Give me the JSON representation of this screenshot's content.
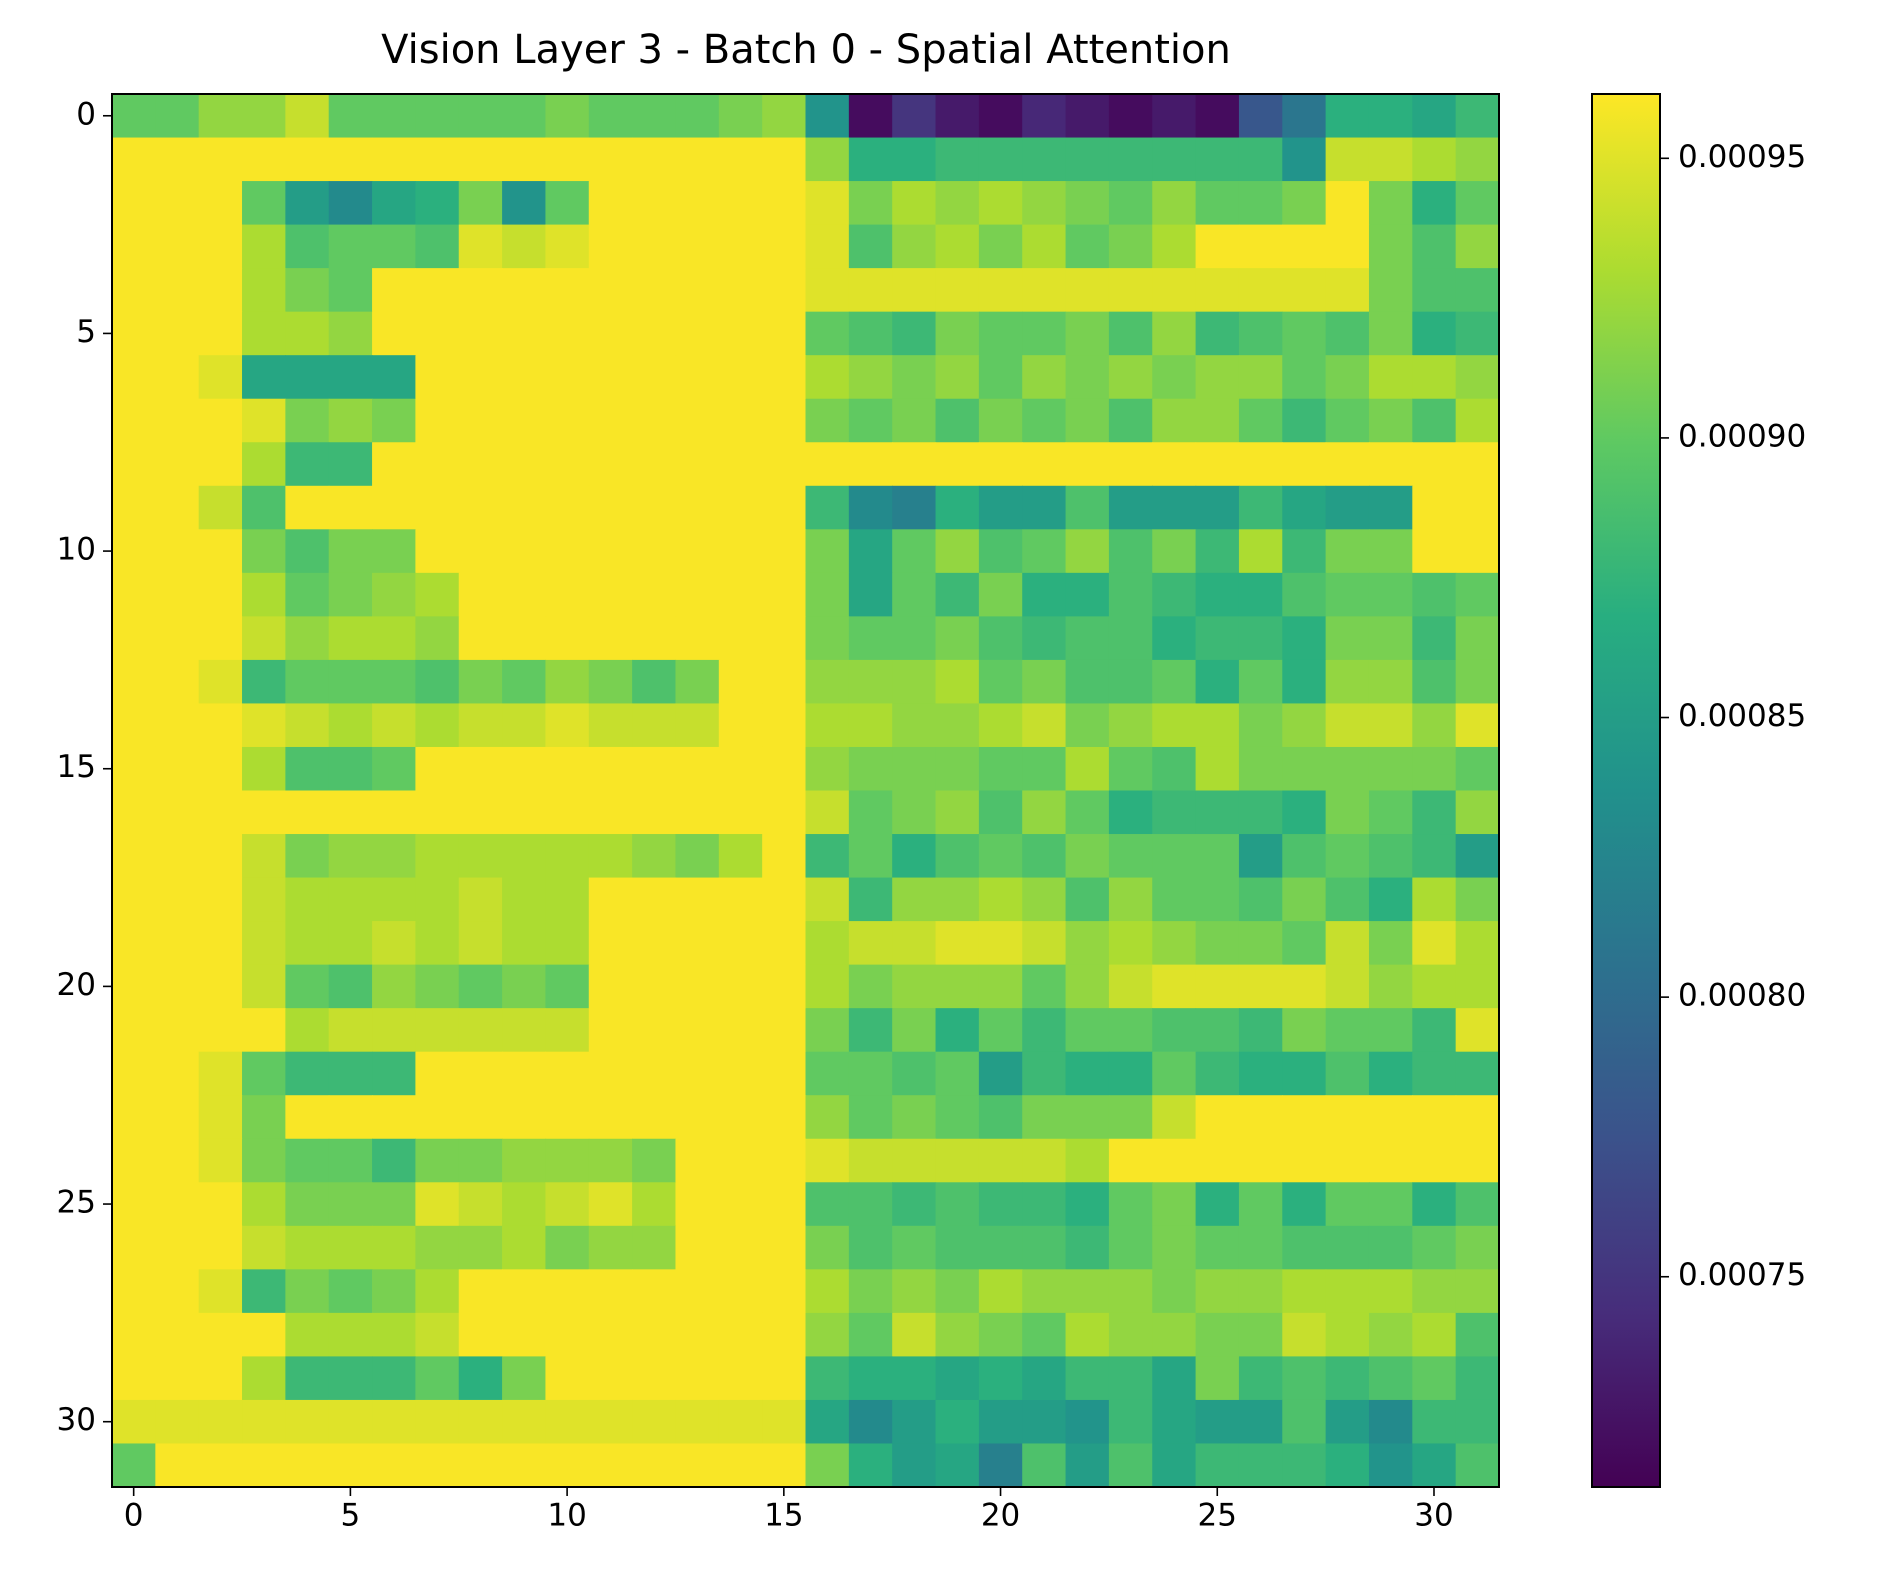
{
  "chart_data": {
    "type": "heatmap",
    "title": "Vision Layer 3 - Batch 0 - Spatial Attention",
    "colormap": "viridis",
    "xlim": [
      -0.5,
      31.5
    ],
    "xticks": [
      0,
      5,
      10,
      15,
      20,
      25,
      30
    ],
    "ylim": [
      31.5,
      -0.5
    ],
    "yticks": [
      0,
      5,
      10,
      15,
      20,
      25,
      30
    ],
    "clim": [
      0.0007124,
      0.0009615
    ],
    "cticks": [
      0.00075,
      {
        "value": 0.0008,
        "label": "0.00080"
      },
      0.00085,
      {
        "value": 0.0009,
        "label": "0.00090"
      },
      0.00095
    ],
    "z": [
      [
        0.0009,
        0.0009,
        0.00092,
        0.00092,
        0.00094,
        0.0009,
        0.0009,
        0.0009,
        0.0009,
        0.0009,
        0.00091,
        0.0009,
        0.0009,
        0.0009,
        0.00091,
        0.00092,
        0.00084,
        0.00072,
        0.00075,
        0.00073,
        0.00072,
        0.00074,
        0.00073,
        0.00072,
        0.00073,
        0.00072,
        0.00078,
        0.00081,
        0.00087,
        0.00087,
        0.00086,
        0.00088
      ],
      [
        0.00096,
        0.00096,
        0.00096,
        0.00096,
        0.00096,
        0.00096,
        0.00096,
        0.00096,
        0.00096,
        0.00096,
        0.00096,
        0.00096,
        0.00096,
        0.00096,
        0.00096,
        0.00096,
        0.00092,
        0.00087,
        0.00087,
        0.00088,
        0.00088,
        0.00088,
        0.00088,
        0.00088,
        0.00088,
        0.00088,
        0.00088,
        0.00084,
        0.00094,
        0.00094,
        0.00093,
        0.00092
      ],
      [
        0.00096,
        0.00096,
        0.00096,
        0.0009,
        0.00085,
        0.00083,
        0.00086,
        0.00087,
        0.00091,
        0.00084,
        0.0009,
        0.00096,
        0.00096,
        0.00096,
        0.00096,
        0.00096,
        0.00095,
        0.00091,
        0.00093,
        0.00092,
        0.00093,
        0.00092,
        0.00091,
        0.0009,
        0.00092,
        0.0009,
        0.0009,
        0.00091,
        0.00096,
        0.00091,
        0.00087,
        0.0009
      ],
      [
        0.00096,
        0.00096,
        0.00096,
        0.00093,
        0.00089,
        0.0009,
        0.0009,
        0.00089,
        0.00095,
        0.00094,
        0.00095,
        0.00096,
        0.00096,
        0.00096,
        0.00096,
        0.00096,
        0.00095,
        0.00089,
        0.00092,
        0.00093,
        0.00091,
        0.00093,
        0.0009,
        0.00091,
        0.00093,
        0.00096,
        0.00096,
        0.00096,
        0.00096,
        0.00091,
        0.00089,
        0.00092
      ],
      [
        0.00096,
        0.00096,
        0.00096,
        0.00093,
        0.00091,
        0.0009,
        0.00096,
        0.00096,
        0.00096,
        0.00096,
        0.00096,
        0.00096,
        0.00096,
        0.00096,
        0.00096,
        0.00096,
        0.00095,
        0.00095,
        0.00095,
        0.00095,
        0.00095,
        0.00095,
        0.00095,
        0.00095,
        0.00095,
        0.00095,
        0.00095,
        0.00095,
        0.00095,
        0.00091,
        0.00089,
        0.00089
      ],
      [
        0.00096,
        0.00096,
        0.00096,
        0.00093,
        0.00093,
        0.00092,
        0.00096,
        0.00096,
        0.00096,
        0.00096,
        0.00096,
        0.00096,
        0.00096,
        0.00096,
        0.00096,
        0.00096,
        0.0009,
        0.00089,
        0.00088,
        0.00091,
        0.0009,
        0.0009,
        0.00091,
        0.00089,
        0.00092,
        0.00088,
        0.00089,
        0.0009,
        0.00089,
        0.00091,
        0.00087,
        0.00088
      ],
      [
        0.00096,
        0.00096,
        0.00095,
        0.00086,
        0.00086,
        0.00086,
        0.00086,
        0.00096,
        0.00096,
        0.00096,
        0.00096,
        0.00096,
        0.00096,
        0.00096,
        0.00096,
        0.00096,
        0.00093,
        0.00092,
        0.00091,
        0.00092,
        0.0009,
        0.00092,
        0.00091,
        0.00092,
        0.00091,
        0.00092,
        0.00092,
        0.0009,
        0.00091,
        0.00093,
        0.00093,
        0.00092
      ],
      [
        0.00096,
        0.00096,
        0.00096,
        0.00095,
        0.00091,
        0.00092,
        0.00091,
        0.00096,
        0.00096,
        0.00096,
        0.00096,
        0.00096,
        0.00096,
        0.00096,
        0.00096,
        0.00096,
        0.00091,
        0.0009,
        0.00091,
        0.00089,
        0.00091,
        0.0009,
        0.00091,
        0.00089,
        0.00092,
        0.00092,
        0.0009,
        0.00088,
        0.0009,
        0.00091,
        0.00089,
        0.00093
      ],
      [
        0.00096,
        0.00096,
        0.00096,
        0.00093,
        0.00088,
        0.00088,
        0.00096,
        0.00096,
        0.00096,
        0.00096,
        0.00096,
        0.00096,
        0.00096,
        0.00096,
        0.00096,
        0.00096,
        0.00096,
        0.00096,
        0.00096,
        0.00096,
        0.00096,
        0.00096,
        0.00096,
        0.00096,
        0.00096,
        0.00096,
        0.00096,
        0.00096,
        0.00096,
        0.00096,
        0.00096,
        0.00096
      ],
      [
        0.00096,
        0.00096,
        0.00094,
        0.00089,
        0.00096,
        0.00096,
        0.00096,
        0.00096,
        0.00096,
        0.00096,
        0.00096,
        0.00096,
        0.00096,
        0.00096,
        0.00096,
        0.00096,
        0.00088,
        0.00083,
        0.00082,
        0.00087,
        0.00085,
        0.00085,
        0.00089,
        0.00085,
        0.00085,
        0.00085,
        0.00088,
        0.00086,
        0.00085,
        0.00085,
        0.00096,
        0.00096
      ],
      [
        0.00096,
        0.00096,
        0.00096,
        0.00091,
        0.00089,
        0.00091,
        0.00091,
        0.00096,
        0.00096,
        0.00096,
        0.00096,
        0.00096,
        0.00096,
        0.00096,
        0.00096,
        0.00096,
        0.00091,
        0.00086,
        0.0009,
        0.00092,
        0.00089,
        0.0009,
        0.00092,
        0.00089,
        0.00091,
        0.00088,
        0.00093,
        0.00088,
        0.00091,
        0.00091,
        0.00096,
        0.00096
      ],
      [
        0.00096,
        0.00096,
        0.00096,
        0.00093,
        0.0009,
        0.00091,
        0.00092,
        0.00093,
        0.00096,
        0.00096,
        0.00096,
        0.00096,
        0.00096,
        0.00096,
        0.00096,
        0.00096,
        0.00091,
        0.00086,
        0.0009,
        0.00088,
        0.00091,
        0.00087,
        0.00087,
        0.00089,
        0.00088,
        0.00087,
        0.00087,
        0.00089,
        0.0009,
        0.0009,
        0.00089,
        0.0009
      ],
      [
        0.00096,
        0.00096,
        0.00096,
        0.00094,
        0.00092,
        0.00093,
        0.00093,
        0.00092,
        0.00096,
        0.00096,
        0.00096,
        0.00096,
        0.00096,
        0.00096,
        0.00096,
        0.00096,
        0.00091,
        0.0009,
        0.0009,
        0.00091,
        0.00089,
        0.00088,
        0.00089,
        0.00089,
        0.00087,
        0.00088,
        0.00088,
        0.00087,
        0.00091,
        0.00091,
        0.00088,
        0.00091
      ],
      [
        0.00096,
        0.00096,
        0.00095,
        0.00088,
        0.0009,
        0.0009,
        0.0009,
        0.00089,
        0.00091,
        0.0009,
        0.00092,
        0.00091,
        0.00089,
        0.00091,
        0.00096,
        0.00096,
        0.00092,
        0.00092,
        0.00092,
        0.00093,
        0.0009,
        0.00091,
        0.00089,
        0.00089,
        0.0009,
        0.00087,
        0.0009,
        0.00087,
        0.00092,
        0.00092,
        0.00089,
        0.00091
      ],
      [
        0.00096,
        0.00096,
        0.00096,
        0.00095,
        0.00094,
        0.00093,
        0.00094,
        0.00093,
        0.00094,
        0.00094,
        0.00095,
        0.00094,
        0.00094,
        0.00094,
        0.00096,
        0.00096,
        0.00093,
        0.00093,
        0.00092,
        0.00092,
        0.00093,
        0.00094,
        0.00091,
        0.00092,
        0.00093,
        0.00093,
        0.00091,
        0.00092,
        0.00094,
        0.00094,
        0.00092,
        0.00095
      ],
      [
        0.00096,
        0.00096,
        0.00096,
        0.00093,
        0.00089,
        0.00089,
        0.0009,
        0.00096,
        0.00096,
        0.00096,
        0.00096,
        0.00096,
        0.00096,
        0.00096,
        0.00096,
        0.00096,
        0.00092,
        0.00091,
        0.00091,
        0.00091,
        0.0009,
        0.0009,
        0.00093,
        0.0009,
        0.00089,
        0.00093,
        0.00091,
        0.00091,
        0.00091,
        0.00091,
        0.00091,
        0.0009
      ],
      [
        0.00096,
        0.00096,
        0.00096,
        0.00096,
        0.00096,
        0.00096,
        0.00096,
        0.00096,
        0.00096,
        0.00096,
        0.00096,
        0.00096,
        0.00096,
        0.00096,
        0.00096,
        0.00096,
        0.00094,
        0.0009,
        0.00091,
        0.00092,
        0.00089,
        0.00092,
        0.0009,
        0.00087,
        0.00088,
        0.00088,
        0.00088,
        0.00087,
        0.00091,
        0.0009,
        0.00088,
        0.00092
      ],
      [
        0.00096,
        0.00096,
        0.00096,
        0.00094,
        0.00091,
        0.00092,
        0.00092,
        0.00093,
        0.00093,
        0.00093,
        0.00093,
        0.00093,
        0.00092,
        0.00091,
        0.00093,
        0.00096,
        0.00088,
        0.0009,
        0.00087,
        0.00089,
        0.0009,
        0.00089,
        0.00091,
        0.0009,
        0.0009,
        0.0009,
        0.00085,
        0.00089,
        0.0009,
        0.00089,
        0.00088,
        0.00085
      ],
      [
        0.00096,
        0.00096,
        0.00096,
        0.00094,
        0.00093,
        0.00093,
        0.00093,
        0.00093,
        0.00094,
        0.00093,
        0.00093,
        0.00096,
        0.00096,
        0.00096,
        0.00096,
        0.00096,
        0.00094,
        0.00088,
        0.00092,
        0.00092,
        0.00093,
        0.00092,
        0.00089,
        0.00092,
        0.0009,
        0.0009,
        0.00089,
        0.00091,
        0.00089,
        0.00087,
        0.00093,
        0.00091
      ],
      [
        0.00096,
        0.00096,
        0.00096,
        0.00094,
        0.00093,
        0.00093,
        0.00094,
        0.00093,
        0.00094,
        0.00093,
        0.00093,
        0.00096,
        0.00096,
        0.00096,
        0.00096,
        0.00096,
        0.00093,
        0.00094,
        0.00094,
        0.00095,
        0.00095,
        0.00094,
        0.00092,
        0.00093,
        0.00092,
        0.00091,
        0.00091,
        0.0009,
        0.00094,
        0.00091,
        0.00095,
        0.00093
      ],
      [
        0.00096,
        0.00096,
        0.00096,
        0.00094,
        0.0009,
        0.00089,
        0.00092,
        0.00091,
        0.0009,
        0.00091,
        0.0009,
        0.00096,
        0.00096,
        0.00096,
        0.00096,
        0.00096,
        0.00093,
        0.00091,
        0.00092,
        0.00092,
        0.00092,
        0.0009,
        0.00092,
        0.00094,
        0.00095,
        0.00095,
        0.00095,
        0.00095,
        0.00094,
        0.00092,
        0.00093,
        0.00093
      ],
      [
        0.00096,
        0.00096,
        0.00096,
        0.00096,
        0.00093,
        0.00094,
        0.00094,
        0.00094,
        0.00094,
        0.00094,
        0.00094,
        0.00096,
        0.00096,
        0.00096,
        0.00096,
        0.00096,
        0.00091,
        0.00088,
        0.00091,
        0.00087,
        0.0009,
        0.00088,
        0.0009,
        0.0009,
        0.00089,
        0.00089,
        0.00088,
        0.00091,
        0.0009,
        0.0009,
        0.00088,
        0.00095
      ],
      [
        0.00096,
        0.00096,
        0.00095,
        0.0009,
        0.00088,
        0.00088,
        0.00088,
        0.00096,
        0.00096,
        0.00096,
        0.00096,
        0.00096,
        0.00096,
        0.00096,
        0.00096,
        0.00096,
        0.0009,
        0.0009,
        0.00089,
        0.0009,
        0.00085,
        0.00088,
        0.00087,
        0.00087,
        0.0009,
        0.00088,
        0.00087,
        0.00087,
        0.00089,
        0.00087,
        0.00088,
        0.00088
      ],
      [
        0.00096,
        0.00096,
        0.00095,
        0.00091,
        0.00096,
        0.00096,
        0.00096,
        0.00096,
        0.00096,
        0.00096,
        0.00096,
        0.00096,
        0.00096,
        0.00096,
        0.00096,
        0.00096,
        0.00092,
        0.0009,
        0.00091,
        0.0009,
        0.00089,
        0.00091,
        0.00091,
        0.00091,
        0.00094,
        0.00096,
        0.00096,
        0.00096,
        0.00096,
        0.00096,
        0.00096,
        0.00096
      ],
      [
        0.00096,
        0.00096,
        0.00095,
        0.00091,
        0.0009,
        0.0009,
        0.00088,
        0.00091,
        0.00091,
        0.00092,
        0.00092,
        0.00092,
        0.00091,
        0.00096,
        0.00096,
        0.00096,
        0.00095,
        0.00094,
        0.00094,
        0.00094,
        0.00094,
        0.00094,
        0.00093,
        0.00096,
        0.00096,
        0.00096,
        0.00096,
        0.00096,
        0.00096,
        0.00096,
        0.00096,
        0.00096
      ],
      [
        0.00096,
        0.00096,
        0.00096,
        0.00093,
        0.00091,
        0.00091,
        0.00091,
        0.00095,
        0.00094,
        0.00093,
        0.00094,
        0.00095,
        0.00093,
        0.00096,
        0.00096,
        0.00096,
        0.00089,
        0.00089,
        0.00088,
        0.00089,
        0.00088,
        0.00088,
        0.00087,
        0.0009,
        0.00091,
        0.00087,
        0.0009,
        0.00087,
        0.0009,
        0.0009,
        0.00087,
        0.00089
      ],
      [
        0.00096,
        0.00096,
        0.00096,
        0.00094,
        0.00093,
        0.00093,
        0.00093,
        0.00092,
        0.00092,
        0.00093,
        0.00091,
        0.00092,
        0.00092,
        0.00096,
        0.00096,
        0.00096,
        0.00091,
        0.00089,
        0.0009,
        0.00089,
        0.00089,
        0.00089,
        0.00088,
        0.0009,
        0.00091,
        0.0009,
        0.0009,
        0.00089,
        0.00089,
        0.00089,
        0.0009,
        0.00091
      ],
      [
        0.00096,
        0.00096,
        0.00095,
        0.00088,
        0.00091,
        0.0009,
        0.00091,
        0.00093,
        0.00096,
        0.00096,
        0.00096,
        0.00096,
        0.00096,
        0.00096,
        0.00096,
        0.00096,
        0.00093,
        0.00091,
        0.00092,
        0.00091,
        0.00093,
        0.00092,
        0.00092,
        0.00092,
        0.00091,
        0.00092,
        0.00092,
        0.00093,
        0.00093,
        0.00093,
        0.00092,
        0.00092
      ],
      [
        0.00096,
        0.00096,
        0.00096,
        0.00096,
        0.00093,
        0.00093,
        0.00093,
        0.00094,
        0.00096,
        0.00096,
        0.00096,
        0.00096,
        0.00096,
        0.00096,
        0.00096,
        0.00096,
        0.00092,
        0.0009,
        0.00094,
        0.00092,
        0.00091,
        0.0009,
        0.00093,
        0.00092,
        0.00092,
        0.00091,
        0.00091,
        0.00094,
        0.00093,
        0.00092,
        0.00093,
        0.00089
      ],
      [
        0.00096,
        0.00096,
        0.00096,
        0.00093,
        0.00088,
        0.00088,
        0.00088,
        0.0009,
        0.00087,
        0.00091,
        0.00096,
        0.00096,
        0.00096,
        0.00096,
        0.00096,
        0.00096,
        0.00088,
        0.00087,
        0.00087,
        0.00086,
        0.00087,
        0.00086,
        0.00088,
        0.00088,
        0.00086,
        0.00091,
        0.00088,
        0.00089,
        0.00088,
        0.00089,
        0.0009,
        0.00088
      ],
      [
        0.00095,
        0.00095,
        0.00095,
        0.00095,
        0.00095,
        0.00095,
        0.00095,
        0.00095,
        0.00095,
        0.00095,
        0.00095,
        0.00095,
        0.00095,
        0.00095,
        0.00095,
        0.00095,
        0.00086,
        0.00083,
        0.00085,
        0.00087,
        0.00085,
        0.00085,
        0.00084,
        0.00088,
        0.00086,
        0.00085,
        0.00085,
        0.00089,
        0.00085,
        0.00083,
        0.00088,
        0.00088
      ],
      [
        0.0009,
        0.00096,
        0.00096,
        0.00096,
        0.00096,
        0.00096,
        0.00096,
        0.00096,
        0.00096,
        0.00096,
        0.00096,
        0.00096,
        0.00096,
        0.00096,
        0.00096,
        0.00096,
        0.00091,
        0.00087,
        0.00085,
        0.00086,
        0.00082,
        0.00089,
        0.00085,
        0.00089,
        0.00086,
        0.00088,
        0.00088,
        0.00088,
        0.00087,
        0.00084,
        0.00086,
        0.00089
      ]
    ]
  }
}
